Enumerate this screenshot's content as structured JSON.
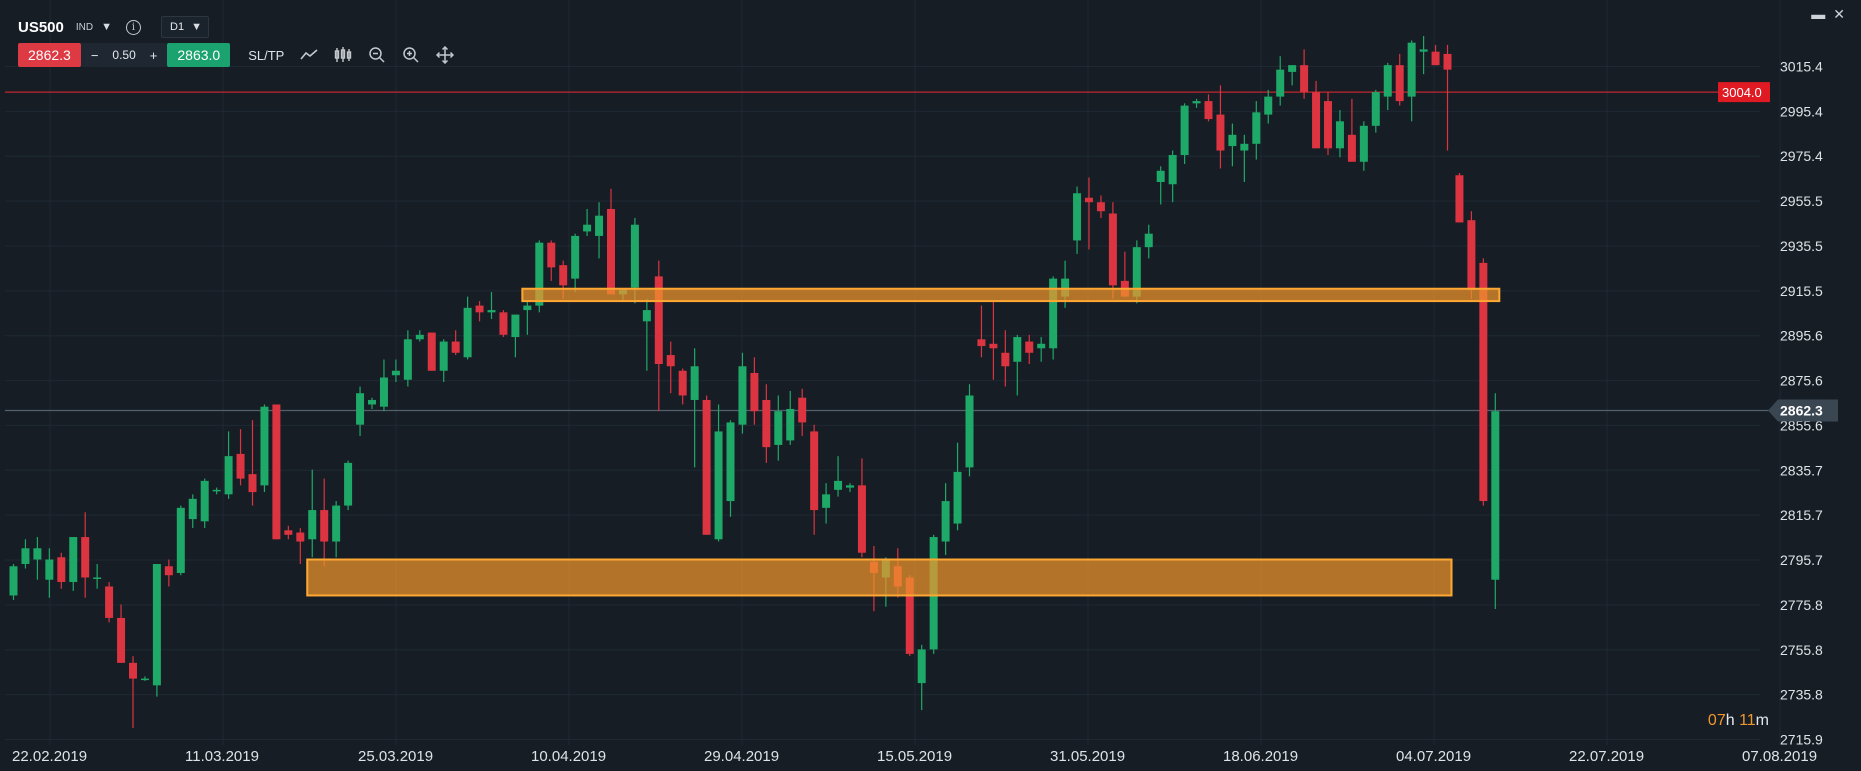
{
  "header": {
    "symbol": "US500",
    "instrument_type": "IND",
    "timeframe": "D1",
    "sell_price": "2862.3",
    "lot_minus": "−",
    "lot_value": "0.50",
    "lot_plus": "+",
    "buy_price": "2863.0",
    "sltp_label": "SL/TP",
    "icons": [
      "chart-type-icon",
      "indicators-icon",
      "zoom-out-icon",
      "zoom-in-icon",
      "crosshair-icon"
    ]
  },
  "window": {
    "minimize": "▬",
    "close": "✕"
  },
  "countdown": {
    "hours": "07",
    "h": "h ",
    "minutes": "11",
    "m": "m"
  },
  "colors": {
    "background": "#161d25",
    "up": "#1fa968",
    "down": "#dc3440",
    "zone_fill": "#f0962b",
    "zone_border": "#ffa733",
    "grid": "#1f2933",
    "current_price_line": "#52606c",
    "level_line": "#c0272f"
  },
  "chart_data": {
    "type": "candlestick",
    "y_ticks": [
      "3015.4",
      "2995.4",
      "2975.4",
      "2955.5",
      "2935.5",
      "2915.5",
      "2895.6",
      "2875.6",
      "2855.6",
      "2835.7",
      "2815.7",
      "2795.7",
      "2775.8",
      "2755.8",
      "2735.8",
      "2715.9"
    ],
    "x_ticks": [
      "22.02.2019",
      "11.03.2019",
      "25.03.2019",
      "10.04.2019",
      "29.04.2019",
      "15.05.2019",
      "31.05.2019",
      "18.06.2019",
      "04.07.2019",
      "22.07.2019",
      "07.08.2019"
    ],
    "ylim": [
      2713.0,
      3034.0
    ],
    "grid": true,
    "current_price": {
      "value": 2862.3,
      "label": "2862.3"
    },
    "level_line": {
      "value": 3004.0,
      "label": "3004.0"
    },
    "zones": [
      {
        "name": "resistance-zone",
        "low": 2911.0,
        "high": 2916.5,
        "start_index": 43,
        "end_index": 124
      },
      {
        "name": "support-zone",
        "low": 2780.0,
        "high": 2796.0,
        "start_index": 25,
        "end_index": 120
      }
    ],
    "candles": [
      {
        "o": 2780,
        "h": 2794,
        "l": 2778,
        "c": 2793
      },
      {
        "o": 2794,
        "h": 2805,
        "l": 2792,
        "c": 2801
      },
      {
        "o": 2796,
        "h": 2806,
        "l": 2787,
        "c": 2801
      },
      {
        "o": 2787,
        "h": 2801,
        "l": 2779,
        "c": 2796
      },
      {
        "o": 2797,
        "h": 2799,
        "l": 2783,
        "c": 2786
      },
      {
        "o": 2786,
        "h": 2806,
        "l": 2782,
        "c": 2806
      },
      {
        "o": 2806,
        "h": 2817,
        "l": 2779,
        "c": 2788
      },
      {
        "o": 2788,
        "h": 2794,
        "l": 2783,
        "c": 2788
      },
      {
        "o": 2784,
        "h": 2786,
        "l": 2768,
        "c": 2770
      },
      {
        "o": 2770,
        "h": 2776,
        "l": 2750,
        "c": 2750
      },
      {
        "o": 2750,
        "h": 2753,
        "l": 2721,
        "c": 2743
      },
      {
        "o": 2743,
        "h": 2744,
        "l": 2742,
        "c": 2743
      },
      {
        "o": 2740,
        "h": 2794,
        "l": 2735,
        "c": 2794
      },
      {
        "o": 2793,
        "h": 2796,
        "l": 2784,
        "c": 2789
      },
      {
        "o": 2790,
        "h": 2820,
        "l": 2789,
        "c": 2819
      },
      {
        "o": 2814,
        "h": 2825,
        "l": 2810,
        "c": 2823
      },
      {
        "o": 2813,
        "h": 2832,
        "l": 2810,
        "c": 2831
      },
      {
        "o": 2827,
        "h": 2828,
        "l": 2825,
        "c": 2827
      },
      {
        "o": 2825,
        "h": 2853,
        "l": 2823,
        "c": 2842
      },
      {
        "o": 2843,
        "h": 2854,
        "l": 2829,
        "c": 2832
      },
      {
        "o": 2834,
        "h": 2858,
        "l": 2820,
        "c": 2826
      },
      {
        "o": 2829,
        "h": 2865,
        "l": 2826,
        "c": 2864
      },
      {
        "o": 2865,
        "h": 2865,
        "l": 2805,
        "c": 2805
      },
      {
        "o": 2809,
        "h": 2811,
        "l": 2805,
        "c": 2807
      },
      {
        "o": 2808,
        "h": 2810,
        "l": 2794,
        "c": 2804
      },
      {
        "o": 2805,
        "h": 2836,
        "l": 2797,
        "c": 2818
      },
      {
        "o": 2818,
        "h": 2832,
        "l": 2793,
        "c": 2804
      },
      {
        "o": 2804,
        "h": 2822,
        "l": 2797,
        "c": 2820
      },
      {
        "o": 2820,
        "h": 2840,
        "l": 2818,
        "c": 2839
      },
      {
        "o": 2856,
        "h": 2873,
        "l": 2851,
        "c": 2870
      },
      {
        "o": 2865,
        "h": 2868,
        "l": 2863,
        "c": 2867
      },
      {
        "o": 2864,
        "h": 2885,
        "l": 2862,
        "c": 2877
      },
      {
        "o": 2878,
        "h": 2885,
        "l": 2875,
        "c": 2880
      },
      {
        "o": 2876,
        "h": 2898,
        "l": 2873,
        "c": 2894
      },
      {
        "o": 2894,
        "h": 2898,
        "l": 2893,
        "c": 2896
      },
      {
        "o": 2897,
        "h": 2897,
        "l": 2880,
        "c": 2880
      },
      {
        "o": 2880,
        "h": 2894,
        "l": 2875,
        "c": 2893
      },
      {
        "o": 2893,
        "h": 2898,
        "l": 2887,
        "c": 2888
      },
      {
        "o": 2886,
        "h": 2913,
        "l": 2885,
        "c": 2908
      },
      {
        "o": 2909,
        "h": 2911,
        "l": 2902,
        "c": 2906
      },
      {
        "o": 2906,
        "h": 2915,
        "l": 2903,
        "c": 2907
      },
      {
        "o": 2906,
        "h": 2907,
        "l": 2895,
        "c": 2896
      },
      {
        "o": 2895,
        "h": 2903,
        "l": 2886,
        "c": 2905
      },
      {
        "o": 2907,
        "h": 2911,
        "l": 2896,
        "c": 2909
      },
      {
        "o": 2909,
        "h": 2938,
        "l": 2906,
        "c": 2937
      },
      {
        "o": 2937,
        "h": 2938,
        "l": 2920,
        "c": 2926
      },
      {
        "o": 2927,
        "h": 2929,
        "l": 2912,
        "c": 2918
      },
      {
        "o": 2921,
        "h": 2941,
        "l": 2915,
        "c": 2940
      },
      {
        "o": 2942,
        "h": 2952,
        "l": 2940,
        "c": 2945
      },
      {
        "o": 2940,
        "h": 2955,
        "l": 2930,
        "c": 2949
      },
      {
        "o": 2952,
        "h": 2961,
        "l": 2914,
        "c": 2914
      },
      {
        "o": 2914,
        "h": 2916,
        "l": 2911,
        "c": 2916
      },
      {
        "o": 2917,
        "h": 2948,
        "l": 2910,
        "c": 2945
      },
      {
        "o": 2902,
        "h": 2912,
        "l": 2880,
        "c": 2907
      },
      {
        "o": 2922,
        "h": 2929,
        "l": 2862,
        "c": 2883
      },
      {
        "o": 2887,
        "h": 2893,
        "l": 2870,
        "c": 2882
      },
      {
        "o": 2880,
        "h": 2881,
        "l": 2865,
        "c": 2869
      },
      {
        "o": 2867,
        "h": 2890,
        "l": 2837,
        "c": 2882
      },
      {
        "o": 2867,
        "h": 2869,
        "l": 2807,
        "c": 2807
      },
      {
        "o": 2805,
        "h": 2865,
        "l": 2804,
        "c": 2853
      },
      {
        "o": 2822,
        "h": 2858,
        "l": 2815,
        "c": 2857
      },
      {
        "o": 2856,
        "h": 2888,
        "l": 2852,
        "c": 2882
      },
      {
        "o": 2879,
        "h": 2886,
        "l": 2856,
        "c": 2862
      },
      {
        "o": 2867,
        "h": 2874,
        "l": 2839,
        "c": 2846
      },
      {
        "o": 2847,
        "h": 2869,
        "l": 2840,
        "c": 2862
      },
      {
        "o": 2849,
        "h": 2871,
        "l": 2847,
        "c": 2863
      },
      {
        "o": 2868,
        "h": 2872,
        "l": 2851,
        "c": 2857
      },
      {
        "o": 2853,
        "h": 2856,
        "l": 2807,
        "c": 2818
      },
      {
        "o": 2819,
        "h": 2830,
        "l": 2812,
        "c": 2825
      },
      {
        "o": 2827,
        "h": 2842,
        "l": 2824,
        "c": 2831
      },
      {
        "o": 2828,
        "h": 2830,
        "l": 2826,
        "c": 2829
      },
      {
        "o": 2829,
        "h": 2841,
        "l": 2797,
        "c": 2799
      },
      {
        "o": 2795,
        "h": 2802,
        "l": 2773,
        "c": 2790
      },
      {
        "o": 2788,
        "h": 2797,
        "l": 2775,
        "c": 2796
      },
      {
        "o": 2793,
        "h": 2801,
        "l": 2779,
        "c": 2784
      },
      {
        "o": 2788,
        "h": 2789,
        "l": 2753,
        "c": 2754
      },
      {
        "o": 2741,
        "h": 2758,
        "l": 2729,
        "c": 2756
      },
      {
        "o": 2756,
        "h": 2807,
        "l": 2754,
        "c": 2806
      },
      {
        "o": 2804,
        "h": 2830,
        "l": 2798,
        "c": 2822
      },
      {
        "o": 2812,
        "h": 2848,
        "l": 2809,
        "c": 2835
      },
      {
        "o": 2837,
        "h": 2874,
        "l": 2833,
        "c": 2869
      },
      {
        "o": 2894,
        "h": 2909,
        "l": 2886,
        "c": 2891
      },
      {
        "o": 2892,
        "h": 2911,
        "l": 2876,
        "c": 2890
      },
      {
        "o": 2888,
        "h": 2898,
        "l": 2873,
        "c": 2882
      },
      {
        "o": 2884,
        "h": 2896,
        "l": 2869,
        "c": 2895
      },
      {
        "o": 2893,
        "h": 2896,
        "l": 2883,
        "c": 2888
      },
      {
        "o": 2890,
        "h": 2895,
        "l": 2884,
        "c": 2892
      },
      {
        "o": 2890,
        "h": 2922,
        "l": 2885,
        "c": 2921
      },
      {
        "o": 2913,
        "h": 2929,
        "l": 2908,
        "c": 2921
      },
      {
        "o": 2938,
        "h": 2962,
        "l": 2932,
        "c": 2959
      },
      {
        "o": 2957,
        "h": 2966,
        "l": 2934,
        "c": 2955
      },
      {
        "o": 2955,
        "h": 2958,
        "l": 2948,
        "c": 2951
      },
      {
        "o": 2950,
        "h": 2955,
        "l": 2912,
        "c": 2918
      },
      {
        "o": 2920,
        "h": 2933,
        "l": 2913,
        "c": 2913
      },
      {
        "o": 2913,
        "h": 2938,
        "l": 2910,
        "c": 2935
      },
      {
        "o": 2935,
        "h": 2945,
        "l": 2930,
        "c": 2941
      },
      {
        "o": 2964,
        "h": 2971,
        "l": 2954,
        "c": 2969
      },
      {
        "o": 2963,
        "h": 2978,
        "l": 2955,
        "c": 2976
      },
      {
        "o": 2976,
        "h": 2999,
        "l": 2972,
        "c": 2998
      },
      {
        "o": 2999,
        "h": 3001,
        "l": 2997,
        "c": 3000
      },
      {
        "o": 3000,
        "h": 3003,
        "l": 2991,
        "c": 2992
      },
      {
        "o": 2994,
        "h": 3007,
        "l": 2970,
        "c": 2978
      },
      {
        "o": 2980,
        "h": 2990,
        "l": 2971,
        "c": 2985
      },
      {
        "o": 2978,
        "h": 2985,
        "l": 2964,
        "c": 2981
      },
      {
        "o": 2981,
        "h": 3000,
        "l": 2974,
        "c": 2995
      },
      {
        "o": 2994,
        "h": 3005,
        "l": 2990,
        "c": 3002
      },
      {
        "o": 3002,
        "h": 3020,
        "l": 2998,
        "c": 3014
      },
      {
        "o": 3013,
        "h": 3016,
        "l": 3007,
        "c": 3016
      },
      {
        "o": 3016,
        "h": 3023,
        "l": 3001,
        "c": 3004
      },
      {
        "o": 3004,
        "h": 3009,
        "l": 2979,
        "c": 2979
      },
      {
        "o": 3000,
        "h": 3004,
        "l": 2976,
        "c": 2979
      },
      {
        "o": 2979,
        "h": 2996,
        "l": 2975,
        "c": 2991
      },
      {
        "o": 2985,
        "h": 3001,
        "l": 2973,
        "c": 2973
      },
      {
        "o": 2973,
        "h": 2991,
        "l": 2969,
        "c": 2989
      },
      {
        "o": 2989,
        "h": 3005,
        "l": 2986,
        "c": 3004
      },
      {
        "o": 3002,
        "h": 3017,
        "l": 2996,
        "c": 3016
      },
      {
        "o": 3016,
        "h": 3021,
        "l": 2998,
        "c": 3000
      },
      {
        "o": 3002,
        "h": 3027,
        "l": 2991,
        "c": 3026
      },
      {
        "o": 3022,
        "h": 3029,
        "l": 3012,
        "c": 3023
      },
      {
        "o": 3022,
        "h": 3025,
        "l": 3016,
        "c": 3016
      },
      {
        "o": 3021,
        "h": 3025,
        "l": 2978,
        "c": 3014
      },
      {
        "o": 2967,
        "h": 2968,
        "l": 2946,
        "c": 2946
      },
      {
        "o": 2947,
        "h": 2951,
        "l": 2912,
        "c": 2916
      },
      {
        "o": 2928,
        "h": 2930,
        "l": 2820,
        "c": 2822
      },
      {
        "o": 2787,
        "h": 2870,
        "l": 2774,
        "c": 2862
      }
    ]
  }
}
